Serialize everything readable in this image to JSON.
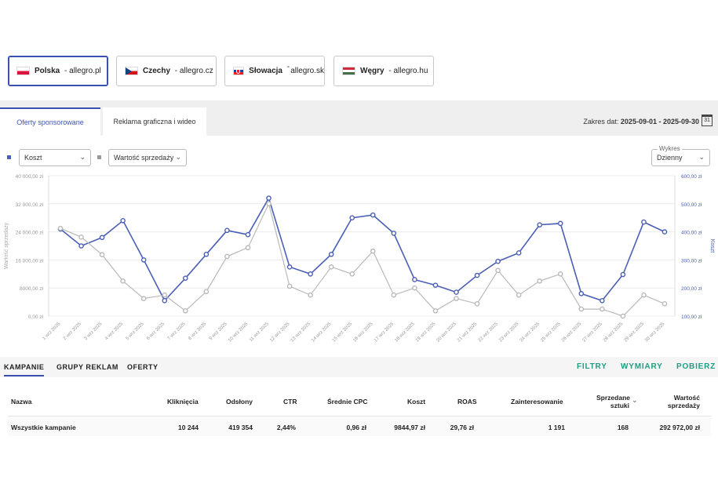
{
  "markets": [
    {
      "country": "Polska",
      "domain": "allegro.pl",
      "active": true
    },
    {
      "country": "Czechy",
      "domain": "allegro.cz",
      "active": false
    },
    {
      "country": "Słowacja",
      "domain": "allegro.sk",
      "active": false
    },
    {
      "country": "Węgry",
      "domain": "allegro.hu",
      "active": false
    }
  ],
  "subtabs": {
    "sponsored": "Oferty sponsorowane",
    "display": "Reklama graficzna i wideo"
  },
  "daterange": {
    "label": "Zakres dat:",
    "value": "2025-09-01 - 2025-09-30",
    "calendar_day": "31"
  },
  "selectors": {
    "left_metric": "Koszt",
    "right_metric": "Wartość sprzedaży",
    "granularity_label": "Wykres",
    "granularity": "Dzienny"
  },
  "colors": {
    "cost": "#4a5fb5",
    "sales": "#b9b9b9",
    "accent": "#1e9e82"
  },
  "chart_data": {
    "type": "line",
    "x": [
      "1 wrz 2025",
      "2 wrz 2025",
      "3 wrz 2025",
      "4 wrz 2025",
      "5 wrz 2025",
      "6 wrz 2025",
      "7 wrz 2025",
      "8 wrz 2025",
      "9 wrz 2025",
      "10 wrz 2025",
      "11 wrz 2025",
      "12 wrz 2025",
      "13 wrz 2025",
      "14 wrz 2025",
      "15 wrz 2025",
      "16 wrz 2025",
      "17 wrz 2025",
      "18 wrz 2025",
      "19 wrz 2025",
      "20 wrz 2025",
      "21 wrz 2025",
      "22 wrz 2025",
      "23 wrz 2025",
      "24 wrz 2025",
      "25 wrz 2025",
      "26 wrz 2025",
      "27 wrz 2025",
      "28 wrz 2025",
      "29 wrz 2025",
      "30 wrz 2025"
    ],
    "y_left_label": "Wartość sprzedaży",
    "y_right_label": "Koszt",
    "y_left_ticks": [
      "40 000,00 zł",
      "32 000,00 zł",
      "24 000,00 zł",
      "16 000,00 zł",
      "8000,00 zł",
      "0,00 zł"
    ],
    "y_right_ticks": [
      "600,00 zł",
      "500,00 zł",
      "400,00 zł",
      "300,00 zł",
      "200,00 zł",
      "100,00 zł"
    ],
    "y_left_range": [
      0,
      40000
    ],
    "y_right_range": [
      100,
      600
    ],
    "series": [
      {
        "name": "Koszt",
        "axis": "right",
        "values": [
          410,
          350,
          380,
          440,
          300,
          155,
          235,
          320,
          405,
          390,
          520,
          275,
          250,
          320,
          450,
          460,
          395,
          230,
          210,
          185,
          245,
          295,
          325,
          425,
          430,
          180,
          155,
          248,
          435,
          400
        ]
      },
      {
        "name": "Wartość sprzedaży",
        "axis": "left",
        "values": [
          25000,
          22500,
          17500,
          10000,
          5000,
          6000,
          1500,
          7000,
          17000,
          19500,
          32000,
          8500,
          6000,
          14000,
          12000,
          18500,
          6000,
          8000,
          1500,
          5000,
          3500,
          13000,
          6000,
          10000,
          12000,
          2000,
          2000,
          0,
          6000,
          3500
        ]
      }
    ],
    "grid": true
  },
  "bottom_tabs": [
    "KAMPANIE",
    "GRUPY REKLAM",
    "OFERTY"
  ],
  "actions": [
    "FILTRY",
    "WYMIARY",
    "POBIERZ"
  ],
  "table": {
    "headers": [
      "Nazwa",
      "Kliknięcia",
      "Odsłony",
      "CTR",
      "Średnie CPC",
      "Koszt",
      "ROAS",
      "Zainteresowanie",
      "Sprzedane sztuki",
      "Wartość sprzedaży"
    ],
    "header_sold_l1": "Sprzedane",
    "header_sold_l2": "sztuki",
    "header_value_l1": "Wartość",
    "header_value_l2": "sprzedaży",
    "row": [
      "Wszystkie kampanie",
      "10 244",
      "419 354",
      "2,44%",
      "0,96 zł",
      "9844,97 zł",
      "29,76 zł",
      "1 191",
      "168",
      "292 972,00 zł"
    ]
  }
}
